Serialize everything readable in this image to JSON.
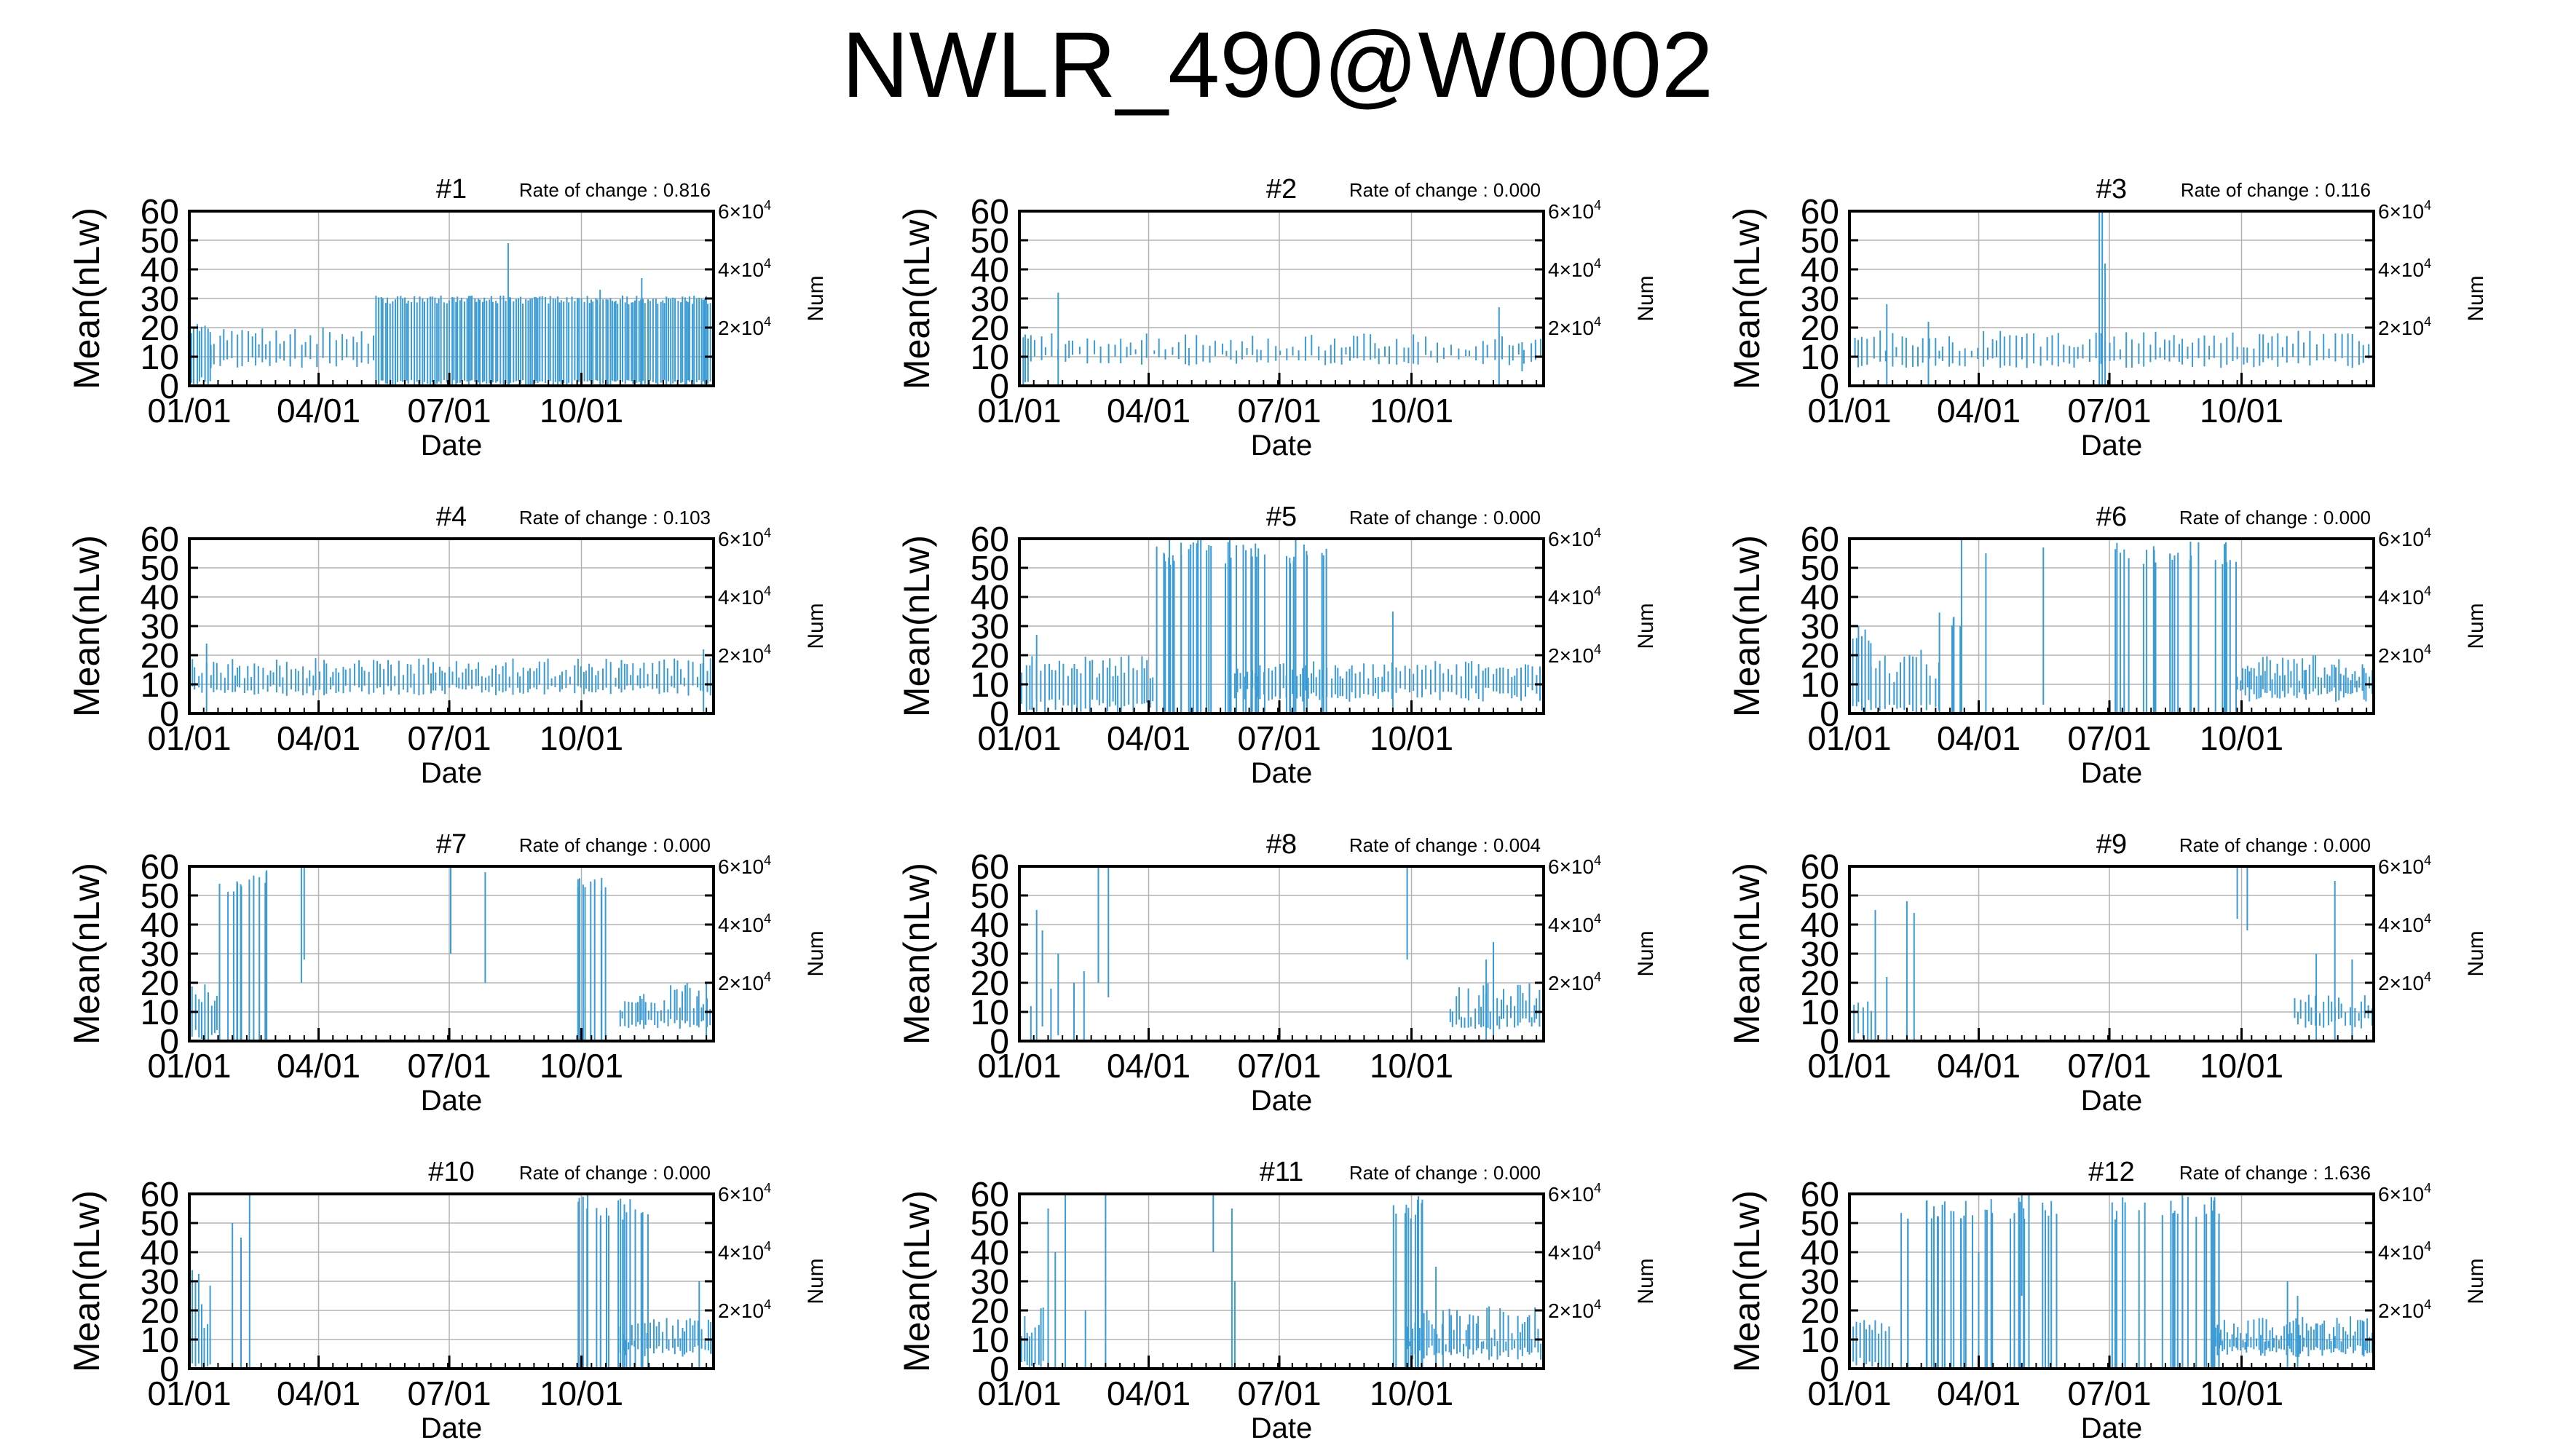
{
  "title": "NWLR_490@W0002",
  "colors": {
    "data": "#3a9bd5",
    "grid": "#b3b3b3",
    "frame": "#000000"
  },
  "common": {
    "ylabel": "Mean(nLw)",
    "xlabel": "Date",
    "y2label": "Num",
    "rate_prefix": "Rate of change : ",
    "yticks": [
      "0",
      "10",
      "20",
      "30",
      "40",
      "50",
      "60"
    ],
    "xticks": [
      "01/01",
      "04/01",
      "07/01",
      "10/01"
    ],
    "y2ticks": [
      {
        "mant": "2",
        "exp": "4"
      },
      {
        "mant": "4",
        "exp": "4"
      },
      {
        "mant": "6",
        "exp": "4"
      }
    ]
  },
  "chart_data": [
    {
      "type": "bar",
      "title": "#1",
      "rate": "0.816",
      "ylim": [
        0,
        60
      ],
      "xlim_days": [
        0,
        365
      ],
      "profile": "p1"
    },
    {
      "type": "bar",
      "title": "#2",
      "rate": "0.000",
      "ylim": [
        0,
        60
      ],
      "xlim_days": [
        0,
        365
      ],
      "profile": "p2"
    },
    {
      "type": "bar",
      "title": "#3",
      "rate": "0.116",
      "ylim": [
        0,
        60
      ],
      "xlim_days": [
        0,
        365
      ],
      "profile": "p3"
    },
    {
      "type": "bar",
      "title": "#4",
      "rate": "0.103",
      "ylim": [
        0,
        60
      ],
      "xlim_days": [
        0,
        365
      ],
      "profile": "p4"
    },
    {
      "type": "bar",
      "title": "#5",
      "rate": "0.000",
      "ylim": [
        0,
        60
      ],
      "xlim_days": [
        0,
        365
      ],
      "profile": "p5"
    },
    {
      "type": "bar",
      "title": "#6",
      "rate": "0.000",
      "ylim": [
        0,
        60
      ],
      "xlim_days": [
        0,
        365
      ],
      "profile": "p6"
    },
    {
      "type": "bar",
      "title": "#7",
      "rate": "0.000",
      "ylim": [
        0,
        60
      ],
      "xlim_days": [
        0,
        365
      ],
      "profile": "p7"
    },
    {
      "type": "bar",
      "title": "#8",
      "rate": "0.004",
      "ylim": [
        0,
        60
      ],
      "xlim_days": [
        0,
        365
      ],
      "profile": "p8"
    },
    {
      "type": "bar",
      "title": "#9",
      "rate": "0.000",
      "ylim": [
        0,
        60
      ],
      "xlim_days": [
        0,
        365
      ],
      "profile": "p9"
    },
    {
      "type": "bar",
      "title": "#10",
      "rate": "0.000",
      "ylim": [
        0,
        60
      ],
      "xlim_days": [
        0,
        365
      ],
      "profile": "p10"
    },
    {
      "type": "bar",
      "title": "#11",
      "rate": "0.000",
      "ylim": [
        0,
        60
      ],
      "xlim_days": [
        0,
        365
      ],
      "profile": "p11"
    },
    {
      "type": "bar",
      "title": "#12",
      "rate": "1.636",
      "ylim": [
        0,
        60
      ],
      "xlim_days": [
        0,
        365
      ],
      "profile": "p12"
    }
  ]
}
